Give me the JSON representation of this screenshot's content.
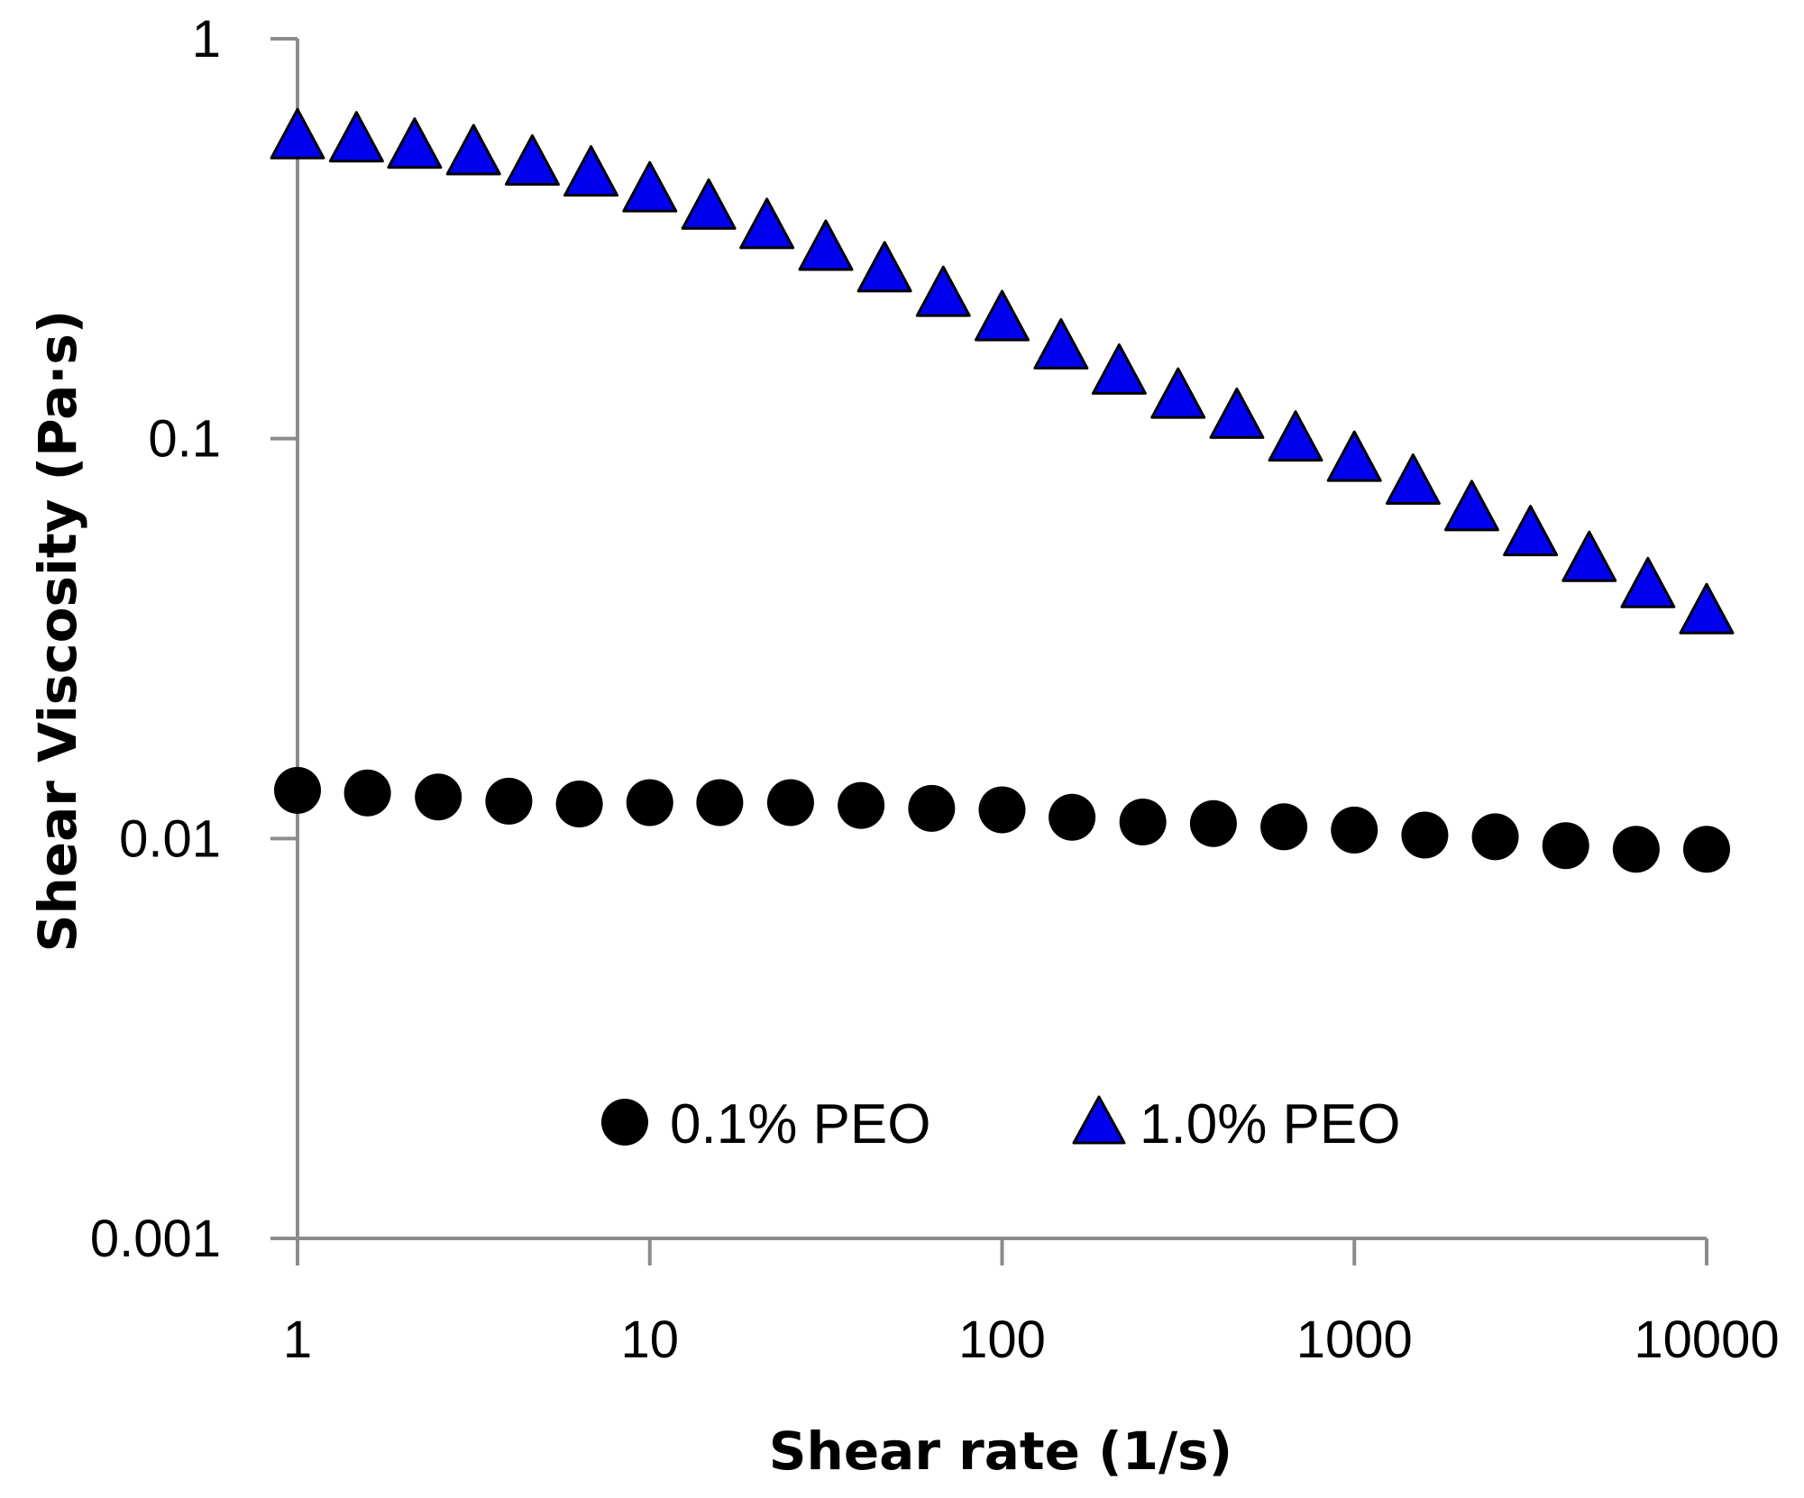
{
  "chart_data": {
    "type": "scatter",
    "title": "",
    "xlabel": "Shear rate (1/s)",
    "ylabel": "Shear Viscosity (Pa·s)",
    "xscale": "log",
    "yscale": "log",
    "xlim": [
      1,
      10000
    ],
    "ylim": [
      0.001,
      1
    ],
    "xticks": [
      "1",
      "10",
      "100",
      "1000",
      "10000"
    ],
    "yticks": [
      "1",
      "0.1",
      "0.01",
      "0.001"
    ],
    "grid": false,
    "legend_position": "bottom-center",
    "series": [
      {
        "name": "0.1% PEO",
        "marker": "circle",
        "color": "#000000",
        "x": [
          1,
          1.58,
          2.51,
          3.98,
          6.31,
          10,
          15.8,
          25.1,
          39.8,
          63.1,
          100,
          158,
          251,
          398,
          631,
          1000,
          1585,
          2512,
          3981,
          6310,
          10000
        ],
        "y": [
          0.0132,
          0.013,
          0.0127,
          0.0124,
          0.0122,
          0.0123,
          0.0123,
          0.0123,
          0.0121,
          0.0119,
          0.0118,
          0.0113,
          0.011,
          0.0109,
          0.0107,
          0.0105,
          0.0102,
          0.0101,
          0.0096,
          0.0094,
          0.0094
        ]
      },
      {
        "name": "1.0% PEO",
        "marker": "triangle",
        "color": "#0000ee",
        "x": [
          1,
          1.47,
          2.15,
          3.16,
          4.64,
          6.81,
          10,
          14.7,
          21.5,
          31.6,
          46.4,
          68.1,
          100,
          147,
          215,
          316,
          464,
          681,
          1000,
          1468,
          2154,
          3162,
          4642,
          6813,
          10000
        ],
        "y": [
          0.57,
          0.56,
          0.54,
          0.52,
          0.49,
          0.46,
          0.42,
          0.38,
          0.34,
          0.3,
          0.265,
          0.23,
          0.2,
          0.17,
          0.147,
          0.128,
          0.114,
          0.1,
          0.089,
          0.078,
          0.067,
          0.058,
          0.05,
          0.043,
          0.037
        ]
      }
    ]
  }
}
